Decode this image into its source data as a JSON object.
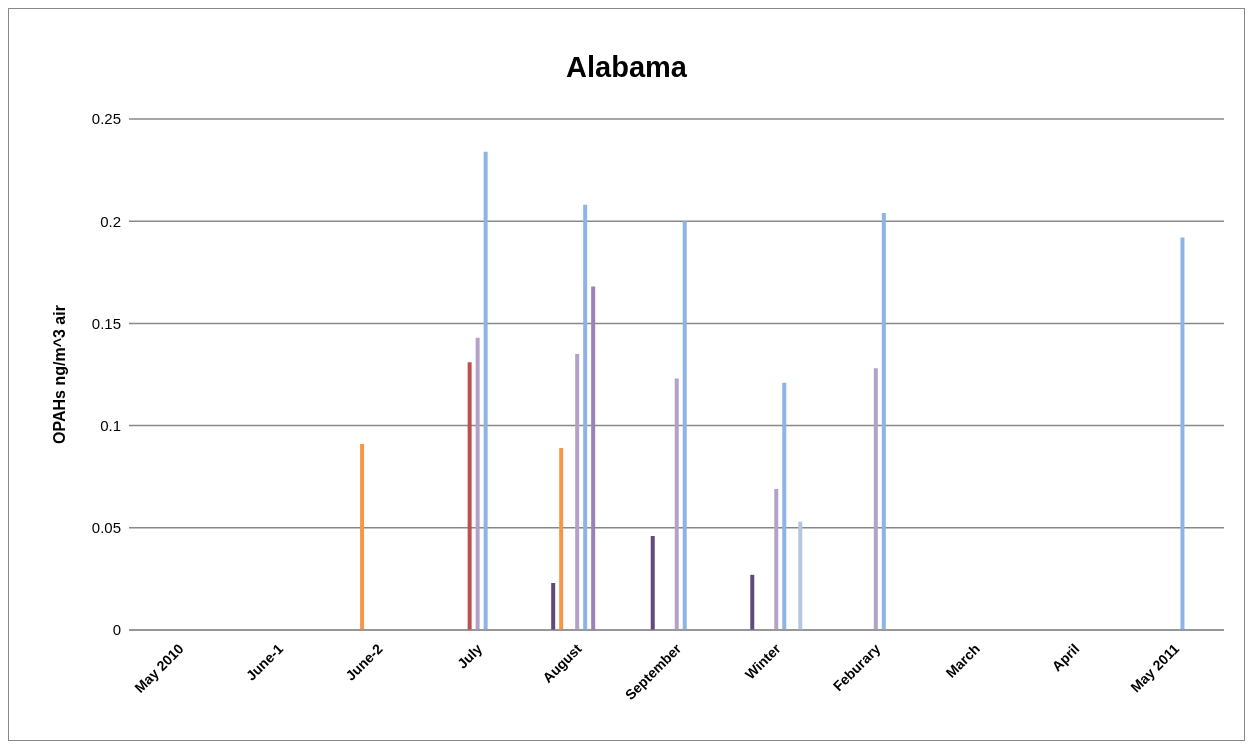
{
  "chart_data": {
    "type": "bar",
    "title": "Alabama",
    "ylabel": "OPAHs ng/m^3 air",
    "categories": [
      "May 2010",
      "June-1",
      "June-2",
      "July",
      "August",
      "September",
      "Winter",
      "Feburary",
      "March",
      "April",
      "May 2011"
    ],
    "series": [
      {
        "color": "#604a7b",
        "values": [
          null,
          null,
          null,
          null,
          0.023,
          0.046,
          0.027,
          null,
          null,
          null,
          null
        ]
      },
      {
        "color": "#f79646",
        "values": [
          null,
          null,
          0.091,
          null,
          0.089,
          null,
          null,
          null,
          null,
          null,
          null
        ]
      },
      {
        "color": "#c0504d",
        "values": [
          null,
          null,
          null,
          0.131,
          null,
          null,
          null,
          null,
          null,
          null,
          null
        ]
      },
      {
        "color": "#b3a2c7",
        "values": [
          null,
          null,
          null,
          0.143,
          0.135,
          0.123,
          0.069,
          0.128,
          null,
          null,
          null
        ]
      },
      {
        "color": "#8db4e2",
        "values": [
          null,
          null,
          null,
          0.234,
          0.208,
          0.2,
          0.121,
          0.204,
          null,
          null,
          0.192
        ]
      },
      {
        "color": "#9983b5",
        "values": [
          null,
          null,
          null,
          null,
          0.168,
          null,
          null,
          null,
          null,
          null,
          null
        ]
      },
      {
        "color": "#b4c6e0",
        "values": [
          null,
          null,
          null,
          null,
          null,
          null,
          0.053,
          null,
          null,
          null,
          null
        ]
      }
    ],
    "ylim": [
      0,
      0.25
    ],
    "yticks": [
      0,
      0.05,
      0.1,
      0.15,
      0.2,
      0.25
    ],
    "grid": "y",
    "legend": false
  }
}
